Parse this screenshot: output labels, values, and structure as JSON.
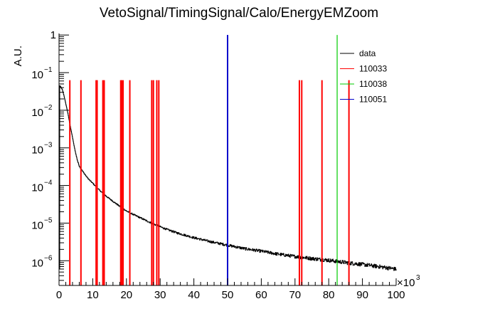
{
  "chart_data": {
    "type": "line",
    "title": "VetoSignal/TimingSignal/Calo/EnergyEMZoom",
    "ylabel": "A.U.",
    "xlabel": "",
    "x_multiplier": "×10",
    "x_multiplier_exp": "3",
    "xlim": [
      0,
      100
    ],
    "ylog": true,
    "ylim": [
      2.2e-07,
      1.1
    ],
    "x_ticks": [
      0,
      10,
      20,
      30,
      40,
      50,
      60,
      70,
      80,
      90,
      100
    ],
    "x_tick_labels": [
      "0",
      "10",
      "20",
      "30",
      "40",
      "50",
      "60",
      "70",
      "80",
      "90",
      "100"
    ],
    "y_ticks": [
      {
        "value": 1,
        "mant": "1",
        "exp": ""
      },
      {
        "value": 0.1,
        "mant": "10",
        "exp": "−1"
      },
      {
        "value": 0.01,
        "mant": "10",
        "exp": "−2"
      },
      {
        "value": 0.001,
        "mant": "10",
        "exp": "−3"
      },
      {
        "value": 0.0001,
        "mant": "10",
        "exp": "−4"
      },
      {
        "value": 1e-05,
        "mant": "10",
        "exp": "−5"
      },
      {
        "value": 1e-06,
        "mant": "10",
        "exp": "−6"
      }
    ],
    "legend": "top-right",
    "series": [
      {
        "name": "data",
        "color": "#000000",
        "style": "histogram",
        "points": [
          [
            0.2,
            0.045
          ],
          [
            0.5,
            0.042
          ],
          [
            1,
            0.035
          ],
          [
            1.5,
            0.024
          ],
          [
            2,
            0.015
          ],
          [
            2.5,
            0.0095
          ],
          [
            3,
            0.0055
          ],
          [
            3.5,
            0.0032
          ],
          [
            4,
            0.0019
          ],
          [
            4.5,
            0.0011
          ],
          [
            5,
            0.00068
          ],
          [
            5.5,
            0.00045
          ],
          [
            6,
            0.00033
          ],
          [
            7,
            0.00024
          ],
          [
            8,
            0.00018
          ],
          [
            9,
            0.00014
          ],
          [
            10,
            0.000115
          ],
          [
            12,
            7.5e-05
          ],
          [
            14,
            5.2e-05
          ],
          [
            16,
            3.8e-05
          ],
          [
            18,
            2.8e-05
          ],
          [
            20,
            2.1e-05
          ],
          [
            22,
            1.7e-05
          ],
          [
            24,
            1.4e-05
          ],
          [
            26,
            1.15e-05
          ],
          [
            28,
            9.5e-06
          ],
          [
            30,
            8e-06
          ],
          [
            32,
            6.8e-06
          ],
          [
            35,
            5.5e-06
          ],
          [
            40,
            4.1e-06
          ],
          [
            45,
            3.2e-06
          ],
          [
            50,
            2.6e-06
          ],
          [
            55,
            2.1e-06
          ],
          [
            60,
            1.8e-06
          ],
          [
            65,
            1.5e-06
          ],
          [
            70,
            1.3e-06
          ],
          [
            75,
            1.15e-06
          ],
          [
            80,
            1.03e-06
          ],
          [
            85,
            9e-07
          ],
          [
            90,
            8e-07
          ],
          [
            95,
            7e-07
          ],
          [
            100,
            6e-07
          ]
        ]
      },
      {
        "name": "110033",
        "color": "#ff0000",
        "style": "spikes",
        "spike_top": 0.063,
        "positions": [
          3.2,
          6.5,
          11,
          11.3,
          13,
          13.4,
          18.3,
          18.6,
          19,
          21,
          27.5,
          28,
          29,
          29.6,
          71.3,
          72,
          78,
          86
        ]
      },
      {
        "name": "110038",
        "color": "#00cc00",
        "style": "spikes",
        "spike_top": 1.0,
        "positions": [
          82.5
        ]
      },
      {
        "name": "110051",
        "color": "#0000cc",
        "style": "spikes",
        "spike_top": 1.0,
        "positions": [
          50
        ]
      }
    ]
  }
}
